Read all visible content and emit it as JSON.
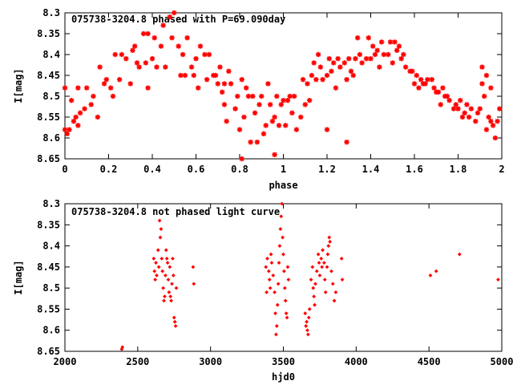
{
  "chart_data": [
    {
      "type": "scatter",
      "title": "075738-3204.8 phased with P=69.090day",
      "xlabel": "phase",
      "ylabel": "I[mag]",
      "xlim": [
        0,
        2
      ],
      "ylim": [
        8.3,
        8.65
      ],
      "y_inverted": true,
      "xticks": [
        "0",
        "0.2",
        "0.4",
        "0.6",
        "0.8",
        "1",
        "1.2",
        "1.4",
        "1.6",
        "1.8",
        "2"
      ],
      "yticks": [
        "8.3",
        "8.35",
        "8.4",
        "8.45",
        "8.5",
        "8.55",
        "8.6",
        "8.65"
      ],
      "grid": false,
      "marker_color": "#ff0000",
      "points": [
        [
          0.0,
          8.58
        ],
        [
          0.0,
          8.48
        ],
        [
          0.01,
          8.59
        ],
        [
          0.02,
          8.58
        ],
        [
          0.03,
          8.51
        ],
        [
          0.04,
          8.56
        ],
        [
          0.05,
          8.55
        ],
        [
          0.06,
          8.57
        ],
        [
          0.07,
          8.54
        ],
        [
          0.06,
          8.48
        ],
        [
          0.09,
          8.53
        ],
        [
          0.1,
          8.48
        ],
        [
          0.12,
          8.52
        ],
        [
          0.13,
          8.5
        ],
        [
          0.15,
          8.55
        ],
        [
          0.16,
          8.43
        ],
        [
          0.18,
          8.47
        ],
        [
          0.19,
          8.46
        ],
        [
          0.21,
          8.48
        ],
        [
          0.22,
          8.5
        ],
        [
          0.23,
          8.4
        ],
        [
          0.25,
          8.46
        ],
        [
          0.26,
          8.4
        ],
        [
          0.28,
          8.41
        ],
        [
          0.3,
          8.47
        ],
        [
          0.31,
          8.39
        ],
        [
          0.32,
          8.38
        ],
        [
          0.33,
          8.42
        ],
        [
          0.34,
          8.43
        ],
        [
          0.36,
          8.35
        ],
        [
          0.37,
          8.42
        ],
        [
          0.38,
          8.48
        ],
        [
          0.38,
          8.35
        ],
        [
          0.4,
          8.41
        ],
        [
          0.41,
          8.36
        ],
        [
          0.42,
          8.43
        ],
        [
          0.44,
          8.38
        ],
        [
          0.45,
          8.33
        ],
        [
          0.46,
          8.43
        ],
        [
          0.48,
          8.31
        ],
        [
          0.49,
          8.36
        ],
        [
          0.5,
          8.3
        ],
        [
          0.52,
          8.38
        ],
        [
          0.53,
          8.45
        ],
        [
          0.54,
          8.4
        ],
        [
          0.55,
          8.45
        ],
        [
          0.56,
          8.36
        ],
        [
          0.58,
          8.43
        ],
        [
          0.59,
          8.45
        ],
        [
          0.6,
          8.41
        ],
        [
          0.61,
          8.48
        ],
        [
          0.62,
          8.38
        ],
        [
          0.64,
          8.4
        ],
        [
          0.65,
          8.46
        ],
        [
          0.66,
          8.4
        ],
        [
          0.68,
          8.45
        ],
        [
          0.69,
          8.45
        ],
        [
          0.7,
          8.47
        ],
        [
          0.71,
          8.43
        ],
        [
          0.72,
          8.49
        ],
        [
          0.73,
          8.52
        ],
        [
          0.73,
          8.47
        ],
        [
          0.74,
          8.56
        ],
        [
          0.75,
          8.44
        ],
        [
          0.76,
          8.47
        ],
        [
          0.78,
          8.53
        ],
        [
          0.79,
          8.5
        ],
        [
          0.8,
          8.58
        ],
        [
          0.81,
          8.46
        ],
        [
          0.82,
          8.55
        ],
        [
          0.83,
          8.48
        ],
        [
          0.84,
          8.5
        ],
        [
          0.86,
          8.5
        ],
        [
          0.87,
          8.54
        ],
        [
          0.88,
          8.61
        ],
        [
          0.89,
          8.52
        ],
        [
          0.9,
          8.5
        ],
        [
          0.91,
          8.59
        ],
        [
          0.92,
          8.57
        ],
        [
          0.93,
          8.47
        ],
        [
          0.94,
          8.52
        ],
        [
          0.95,
          8.56
        ],
        [
          0.96,
          8.55
        ],
        [
          0.97,
          8.5
        ],
        [
          0.98,
          8.57
        ],
        [
          0.99,
          8.52
        ],
        [
          1.0,
          8.51
        ],
        [
          1.01,
          8.57
        ],
        [
          1.02,
          8.51
        ],
        [
          1.03,
          8.5
        ],
        [
          1.04,
          8.54
        ],
        [
          1.05,
          8.5
        ],
        [
          1.06,
          8.58
        ],
        [
          1.08,
          8.55
        ],
        [
          1.09,
          8.46
        ],
        [
          1.1,
          8.52
        ],
        [
          1.11,
          8.47
        ],
        [
          1.12,
          8.51
        ],
        [
          1.13,
          8.45
        ],
        [
          1.14,
          8.42
        ],
        [
          1.15,
          8.46
        ],
        [
          1.16,
          8.4
        ],
        [
          1.17,
          8.43
        ],
        [
          1.18,
          8.46
        ],
        [
          1.2,
          8.45
        ],
        [
          1.21,
          8.41
        ],
        [
          1.22,
          8.44
        ],
        [
          1.23,
          8.42
        ],
        [
          1.24,
          8.48
        ],
        [
          1.25,
          8.41
        ],
        [
          1.26,
          8.43
        ],
        [
          1.28,
          8.42
        ],
        [
          1.29,
          8.46
        ],
        [
          1.3,
          8.41
        ],
        [
          1.31,
          8.44
        ],
        [
          1.32,
          8.45
        ],
        [
          1.33,
          8.41
        ],
        [
          1.34,
          8.36
        ],
        [
          1.35,
          8.4
        ],
        [
          1.36,
          8.42
        ],
        [
          1.38,
          8.41
        ],
        [
          1.39,
          8.36
        ],
        [
          1.4,
          8.41
        ],
        [
          1.41,
          8.38
        ],
        [
          1.42,
          8.4
        ],
        [
          1.43,
          8.39
        ],
        [
          1.44,
          8.43
        ],
        [
          1.45,
          8.37
        ],
        [
          1.46,
          8.4
        ],
        [
          1.48,
          8.4
        ],
        [
          1.49,
          8.37
        ],
        [
          1.5,
          8.42
        ],
        [
          1.51,
          8.37
        ],
        [
          1.52,
          8.39
        ],
        [
          1.53,
          8.38
        ],
        [
          1.54,
          8.41
        ],
        [
          1.55,
          8.4
        ],
        [
          1.56,
          8.43
        ],
        [
          1.58,
          8.44
        ],
        [
          1.59,
          8.44
        ],
        [
          1.6,
          8.47
        ],
        [
          1.61,
          8.45
        ],
        [
          1.62,
          8.48
        ],
        [
          1.63,
          8.46
        ],
        [
          1.64,
          8.47
        ],
        [
          1.65,
          8.47
        ],
        [
          1.66,
          8.46
        ],
        [
          1.68,
          8.46
        ],
        [
          1.69,
          8.48
        ],
        [
          1.7,
          8.49
        ],
        [
          1.71,
          8.49
        ],
        [
          1.72,
          8.52
        ],
        [
          1.73,
          8.48
        ],
        [
          1.74,
          8.5
        ],
        [
          1.75,
          8.5
        ],
        [
          1.76,
          8.51
        ],
        [
          1.78,
          8.53
        ],
        [
          1.79,
          8.52
        ],
        [
          1.8,
          8.53
        ],
        [
          1.81,
          8.51
        ],
        [
          1.82,
          8.55
        ],
        [
          1.83,
          8.54
        ],
        [
          1.84,
          8.52
        ],
        [
          1.85,
          8.55
        ],
        [
          1.86,
          8.53
        ],
        [
          1.88,
          8.56
        ],
        [
          1.89,
          8.54
        ],
        [
          1.9,
          8.53
        ],
        [
          1.91,
          8.47
        ],
        [
          1.92,
          8.5
        ],
        [
          1.93,
          8.58
        ],
        [
          1.94,
          8.55
        ],
        [
          1.95,
          8.56
        ],
        [
          1.96,
          8.57
        ],
        [
          1.97,
          8.6
        ],
        [
          1.98,
          8.56
        ],
        [
          1.99,
          8.53
        ],
        [
          1.91,
          8.43
        ],
        [
          1.93,
          8.45
        ],
        [
          1.95,
          8.48
        ],
        [
          0.81,
          8.65
        ],
        [
          0.96,
          8.64
        ],
        [
          1.29,
          8.61
        ],
        [
          1.2,
          8.58
        ],
        [
          0.85,
          8.61
        ]
      ]
    },
    {
      "type": "scatter",
      "title": "075738-3204.8 not phased light curve",
      "xlabel": "hjd0",
      "ylabel": "I[mag]",
      "xlim": [
        2000,
        5000
      ],
      "ylim": [
        8.3,
        8.65
      ],
      "y_inverted": true,
      "xticks": [
        "2000",
        "2500",
        "3000",
        "3500",
        "4000",
        "4500",
        "5000"
      ],
      "yticks": [
        "8.3",
        "8.35",
        "8.4",
        "8.45",
        "8.5",
        "8.55",
        "8.6",
        "8.65"
      ],
      "grid": false,
      "marker_color": "#ff0000",
      "points": [
        [
          2390,
          8.645
        ],
        [
          2395,
          8.64
        ],
        [
          2610,
          8.43
        ],
        [
          2615,
          8.46
        ],
        [
          2620,
          8.48
        ],
        [
          2625,
          8.44
        ],
        [
          2630,
          8.47
        ],
        [
          2640,
          8.41
        ],
        [
          2645,
          8.45
        ],
        [
          2650,
          8.34
        ],
        [
          2655,
          8.38
        ],
        [
          2660,
          8.36
        ],
        [
          2665,
          8.43
        ],
        [
          2670,
          8.46
        ],
        [
          2675,
          8.5
        ],
        [
          2680,
          8.53
        ],
        [
          2685,
          8.52
        ],
        [
          2690,
          8.47
        ],
        [
          2695,
          8.41
        ],
        [
          2700,
          8.43
        ],
        [
          2705,
          8.44
        ],
        [
          2710,
          8.48
        ],
        [
          2715,
          8.51
        ],
        [
          2720,
          8.45
        ],
        [
          2725,
          8.52
        ],
        [
          2730,
          8.53
        ],
        [
          2735,
          8.49
        ],
        [
          2740,
          8.43
        ],
        [
          2745,
          8.47
        ],
        [
          2750,
          8.57
        ],
        [
          2755,
          8.58
        ],
        [
          2760,
          8.59
        ],
        [
          2765,
          8.5
        ],
        [
          2880,
          8.45
        ],
        [
          2885,
          8.49
        ],
        [
          3380,
          8.45
        ],
        [
          3385,
          8.51
        ],
        [
          3390,
          8.43
        ],
        [
          3400,
          8.46
        ],
        [
          3405,
          8.48
        ],
        [
          3410,
          8.5
        ],
        [
          3415,
          8.42
        ],
        [
          3420,
          8.44
        ],
        [
          3430,
          8.47
        ],
        [
          3440,
          8.51
        ],
        [
          3445,
          8.56
        ],
        [
          3450,
          8.61
        ],
        [
          3455,
          8.59
        ],
        [
          3460,
          8.54
        ],
        [
          3465,
          8.49
        ],
        [
          3470,
          8.44
        ],
        [
          3475,
          8.4
        ],
        [
          3480,
          8.36
        ],
        [
          3485,
          8.33
        ],
        [
          3490,
          8.3
        ],
        [
          3495,
          8.38
        ],
        [
          3500,
          8.42
        ],
        [
          3505,
          8.46
        ],
        [
          3510,
          8.5
        ],
        [
          3515,
          8.53
        ],
        [
          3520,
          8.56
        ],
        [
          3525,
          8.57
        ],
        [
          3530,
          8.45
        ],
        [
          3535,
          8.48
        ],
        [
          3650,
          8.56
        ],
        [
          3655,
          8.59
        ],
        [
          3660,
          8.58
        ],
        [
          3665,
          8.6
        ],
        [
          3670,
          8.61
        ],
        [
          3675,
          8.57
        ],
        [
          3680,
          8.55
        ],
        [
          3690,
          8.48
        ],
        [
          3700,
          8.45
        ],
        [
          3705,
          8.5
        ],
        [
          3710,
          8.52
        ],
        [
          3715,
          8.54
        ],
        [
          3720,
          8.49
        ],
        [
          3730,
          8.46
        ],
        [
          3740,
          8.42
        ],
        [
          3745,
          8.44
        ],
        [
          3750,
          8.47
        ],
        [
          3760,
          8.43
        ],
        [
          3765,
          8.45
        ],
        [
          3770,
          8.41
        ],
        [
          3780,
          8.44
        ],
        [
          3785,
          8.48
        ],
        [
          3790,
          8.51
        ],
        [
          3800,
          8.45
        ],
        [
          3805,
          8.42
        ],
        [
          3810,
          8.4
        ],
        [
          3815,
          8.38
        ],
        [
          3820,
          8.39
        ],
        [
          3830,
          8.46
        ],
        [
          3840,
          8.49
        ],
        [
          3850,
          8.53
        ],
        [
          3860,
          8.51
        ],
        [
          3900,
          8.43
        ],
        [
          3905,
          8.48
        ],
        [
          4510,
          8.47
        ],
        [
          4550,
          8.46
        ],
        [
          4710,
          8.42
        ],
        [
          4975,
          8.48
        ]
      ]
    }
  ]
}
